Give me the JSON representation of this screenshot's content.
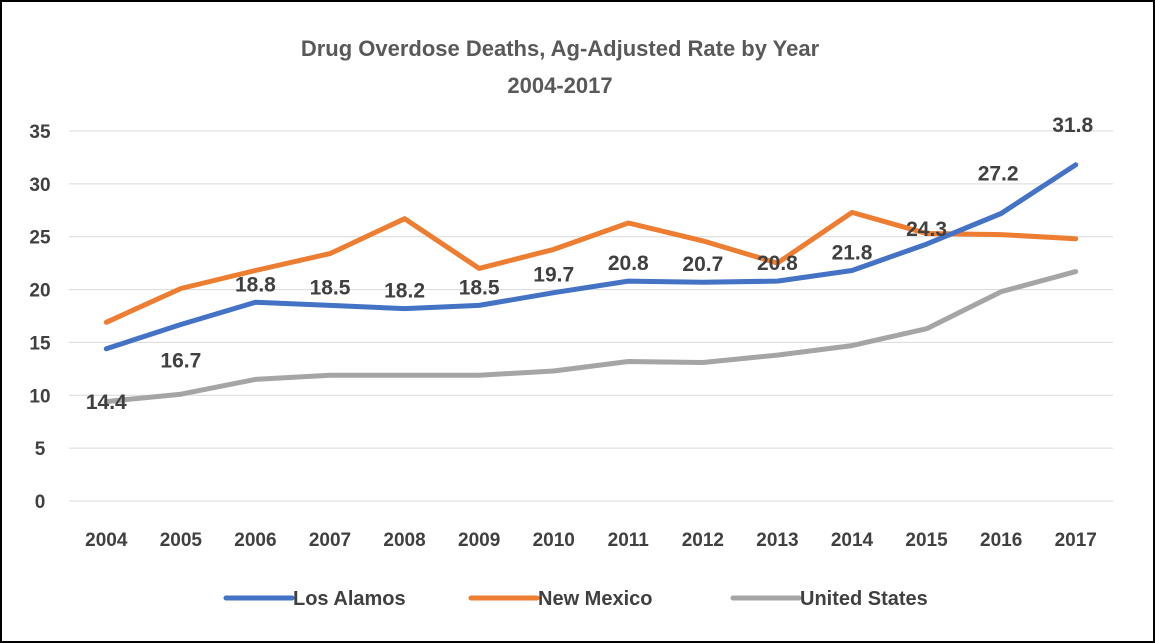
{
  "chart_data": {
    "type": "line",
    "title": "Drug Overdose Deaths, Ag-Adjusted Rate by Year",
    "subtitle": "2004-2017",
    "xlabel": "",
    "ylabel": "",
    "ylim": [
      0,
      35
    ],
    "yticks": [
      "0",
      "5",
      "10",
      "15",
      "20",
      "25",
      "30",
      "35"
    ],
    "categories": [
      "2004",
      "2005",
      "2006",
      "2007",
      "2008",
      "2009",
      "2010",
      "2011",
      "2012",
      "2013",
      "2014",
      "2015",
      "2016",
      "2017"
    ],
    "grid": true,
    "legend_position": "bottom",
    "series": [
      {
        "name": "Los Alamos",
        "color": "#4472c4",
        "values": [
          14.4,
          16.7,
          18.8,
          18.5,
          18.2,
          18.5,
          19.7,
          20.8,
          20.7,
          20.8,
          21.8,
          24.3,
          27.2,
          31.8
        ],
        "data_labels": [
          "14.4",
          "16.7",
          "18.8",
          "18.5",
          "18.2",
          "18.5",
          "19.7",
          "20.8",
          "20.7",
          "20.8",
          "21.8",
          "24.3",
          "27.2",
          "31.8"
        ]
      },
      {
        "name": "New Mexico",
        "color": "#ed7d31",
        "values": [
          16.9,
          20.1,
          21.8,
          23.4,
          26.7,
          22.0,
          23.8,
          26.3,
          24.6,
          22.5,
          27.3,
          25.3,
          25.2,
          24.8
        ]
      },
      {
        "name": "United States",
        "color": "#a5a5a5",
        "values": [
          9.4,
          10.1,
          11.5,
          11.9,
          11.9,
          11.9,
          12.3,
          13.2,
          13.1,
          13.8,
          14.7,
          16.3,
          19.8,
          21.7
        ]
      }
    ]
  }
}
